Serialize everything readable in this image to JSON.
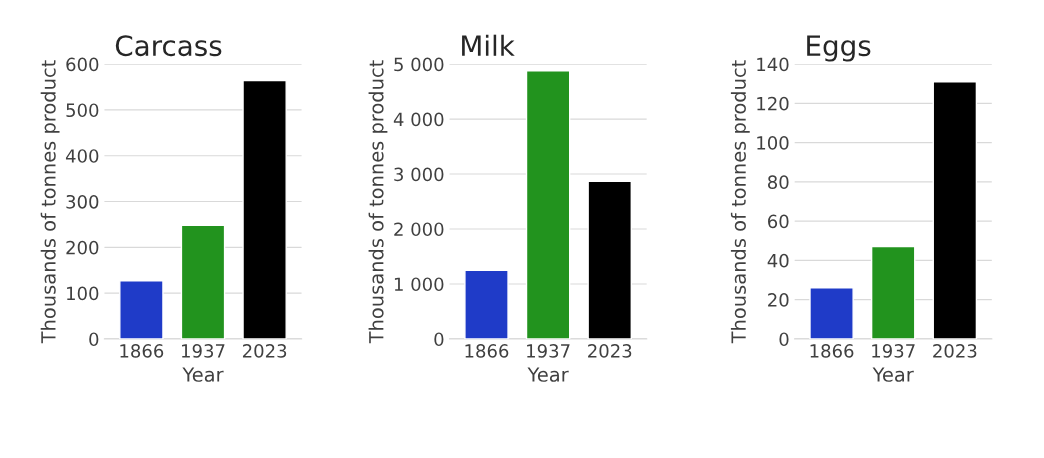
{
  "chart_data": [
    {
      "type": "bar",
      "title": "Carcass",
      "xlabel": "Year",
      "ylabel": "Thousands of tonnes product",
      "categories": [
        "1866",
        "1937",
        "2023"
      ],
      "values": [
        127,
        248,
        564
      ],
      "colors": [
        "#1f3bc8",
        "#22931e",
        "#000000"
      ],
      "ylim": [
        0,
        600
      ],
      "yticks": [
        0,
        100,
        200,
        300,
        400,
        500,
        600
      ],
      "grid": "y",
      "legend": false
    },
    {
      "type": "bar",
      "title": "Milk",
      "xlabel": "Year",
      "ylabel": "Thousands of tonnes product",
      "categories": [
        "1866",
        "1937",
        "2023"
      ],
      "values": [
        1250,
        4880,
        2870
      ],
      "colors": [
        "#1f3bc8",
        "#22931e",
        "#000000"
      ],
      "ylim": [
        0,
        5000
      ],
      "yticks": [
        0,
        {
          "value": 1000,
          "label": "1 000"
        },
        {
          "value": 2000,
          "label": "2 000"
        },
        {
          "value": 3000,
          "label": "3 000"
        },
        {
          "value": 4000,
          "label": "4 000"
        },
        {
          "value": 5000,
          "label": "5 000"
        }
      ],
      "grid": "y",
      "legend": false
    },
    {
      "type": "bar",
      "title": "Eggs",
      "xlabel": "Year",
      "ylabel": "Thousands of tonnes product",
      "categories": [
        "1866",
        "1937",
        "2023"
      ],
      "values": [
        26,
        47,
        131
      ],
      "colors": [
        "#1f3bc8",
        "#22931e",
        "#000000"
      ],
      "ylim": [
        0,
        140
      ],
      "yticks": [
        0,
        20,
        40,
        60,
        80,
        100,
        120,
        140
      ],
      "grid": "y",
      "legend": false
    }
  ]
}
